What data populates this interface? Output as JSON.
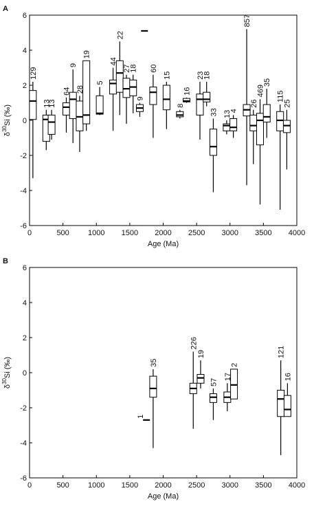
{
  "chart_data": [
    {
      "type": "box",
      "panel_label": "A",
      "xlabel": "Age (Ma)",
      "ylabel": {
        "prefix": "δ",
        "superscript": "30",
        "suffix": "Si (‰)"
      },
      "xlim": [
        0,
        4000
      ],
      "ylim": [
        -6,
        6
      ],
      "xticks": [
        0,
        500,
        1000,
        1500,
        2000,
        2500,
        3000,
        3500,
        4000
      ],
      "yticks": [
        -6,
        -4,
        -2,
        0,
        2,
        4,
        6
      ],
      "boxes": [
        {
          "x": 50,
          "n": "129",
          "min": -3.3,
          "q1": 0.05,
          "median": 1.1,
          "q3": 1.7,
          "max": 2.2
        },
        {
          "x": 250,
          "n": "13",
          "min": -1.7,
          "q1": -1.2,
          "median": 0.05,
          "q3": 0.3,
          "max": 0.6
        },
        {
          "x": 330,
          "n": "13",
          "min": -1.1,
          "q1": -0.8,
          "median": -0.1,
          "q3": 0.3,
          "max": 0.6
        },
        {
          "x": 550,
          "n": "64",
          "min": -0.7,
          "q1": 0.3,
          "median": 0.75,
          "q3": 1.0,
          "max": 1.3
        },
        {
          "x": 650,
          "n": "9",
          "min": -1.3,
          "q1": 0.1,
          "median": 1.2,
          "q3": 1.6,
          "max": 2.9
        },
        {
          "x": 750,
          "n": "28",
          "min": -1.8,
          "q1": -0.6,
          "median": 0.2,
          "q3": 1.1,
          "max": 1.4
        },
        {
          "x": 850,
          "n": "19",
          "min": -0.6,
          "q1": -0.2,
          "median": 0.3,
          "q3": 3.4,
          "max": 3.4
        },
        {
          "x": 1050,
          "n": "5",
          "min": 0.3,
          "q1": 0.35,
          "median": 0.4,
          "q3": 1.4,
          "max": 1.9
        },
        {
          "x": 1250,
          "n": "44",
          "min": -0.6,
          "q1": 1.5,
          "median": 2.1,
          "q3": 2.3,
          "max": 3.0
        },
        {
          "x": 1350,
          "n": "22",
          "min": 0.3,
          "q1": 1.6,
          "median": 2.7,
          "q3": 3.4,
          "max": 4.5
        },
        {
          "x": 1450,
          "n": "27",
          "min": -0.2,
          "q1": 1.3,
          "median": 1.8,
          "q3": 2.4,
          "max": 2.6
        },
        {
          "x": 1550,
          "n": "18",
          "min": 0.4,
          "q1": 1.4,
          "median": 1.9,
          "q3": 2.3,
          "max": 2.6
        },
        {
          "x": 1650,
          "n": "9",
          "min": 0.2,
          "q1": 0.5,
          "median": 0.7,
          "q3": 0.9,
          "max": 1.0
        },
        {
          "x": 1720,
          "min": 5.1,
          "q1": 5.1,
          "median": 5.1,
          "q3": 5.1,
          "max": 5.1
        },
        {
          "x": 1850,
          "n": "60",
          "min": -1.0,
          "q1": 0.9,
          "median": 1.6,
          "q3": 1.9,
          "max": 2.6
        },
        {
          "x": 2050,
          "n": "15",
          "min": -0.5,
          "q1": 0.6,
          "median": 1.2,
          "q3": 2.0,
          "max": 2.2
        },
        {
          "x": 2250,
          "n": "8",
          "min": 0.1,
          "q1": 0.2,
          "median": 0.3,
          "q3": 0.5,
          "max": 0.6
        },
        {
          "x": 2350,
          "n": "16",
          "min": 1.0,
          "q1": 1.05,
          "median": 1.1,
          "q3": 1.25,
          "max": 1.3
        },
        {
          "x": 2550,
          "n": "23",
          "min": -1.1,
          "q1": 0.3,
          "median": 1.2,
          "q3": 1.5,
          "max": 2.2
        },
        {
          "x": 2650,
          "n": "18",
          "min": 0.8,
          "q1": 1.05,
          "median": 1.2,
          "q3": 1.6,
          "max": 2.2
        },
        {
          "x": 2750,
          "n": "33",
          "min": -4.1,
          "q1": -2.0,
          "median": -1.5,
          "q3": -0.5,
          "max": 0.1
        },
        {
          "x": 2950,
          "n": "13",
          "min": -0.8,
          "q1": -0.6,
          "median": -0.3,
          "q3": -0.2,
          "max": 0.0
        },
        {
          "x": 3050,
          "n": "4",
          "min": -1.0,
          "q1": -0.6,
          "median": -0.4,
          "q3": 0.1,
          "max": 0.3
        },
        {
          "x": 3250,
          "n": "857",
          "min": -3.7,
          "q1": 0.25,
          "median": 0.6,
          "q3": 0.9,
          "max": 5.2
        },
        {
          "x": 3350,
          "n": "26",
          "min": -2.5,
          "q1": -0.6,
          "median": -0.3,
          "q3": 0.3,
          "max": 0.6
        },
        {
          "x": 3450,
          "n": "469",
          "min": -4.8,
          "q1": -1.4,
          "median": 0.0,
          "q3": 0.4,
          "max": 1.2
        },
        {
          "x": 3550,
          "n": "35",
          "min": -1.0,
          "q1": -0.1,
          "median": 0.2,
          "q3": 0.9,
          "max": 1.8
        },
        {
          "x": 3750,
          "n": "115",
          "min": -5.1,
          "q1": -0.6,
          "median": 0.0,
          "q3": 0.5,
          "max": 0.9
        },
        {
          "x": 3850,
          "n": "25",
          "min": -2.8,
          "q1": -0.7,
          "median": -0.3,
          "q3": 0.0,
          "max": 0.6
        }
      ]
    },
    {
      "type": "box",
      "panel_label": "B",
      "xlabel": "Age (Ma)",
      "ylabel": {
        "prefix": "δ",
        "superscript": "30",
        "suffix": "Si (‰)"
      },
      "xlim": [
        0,
        4000
      ],
      "ylim": [
        -6,
        6
      ],
      "xticks": [
        0,
        500,
        1000,
        1500,
        2000,
        2500,
        3000,
        3500,
        4000
      ],
      "yticks": [
        -6,
        -4,
        -2,
        0,
        2,
        4,
        6
      ],
      "boxes": [
        {
          "x": 1750,
          "n": "1",
          "min": -2.7,
          "q1": -2.7,
          "median": -2.7,
          "q3": -2.7,
          "max": -2.7
        },
        {
          "x": 1850,
          "n": "35",
          "min": -4.3,
          "q1": -1.4,
          "median": -0.9,
          "q3": -0.2,
          "max": 0.2
        },
        {
          "x": 2450,
          "n": "226",
          "min": -3.2,
          "q1": -1.2,
          "median": -0.9,
          "q3": -0.6,
          "max": 1.2
        },
        {
          "x": 2560,
          "n": "19",
          "min": -0.9,
          "q1": -0.6,
          "median": -0.3,
          "q3": -0.1,
          "max": 0.7
        },
        {
          "x": 2750,
          "n": "57",
          "min": -2.7,
          "q1": -1.7,
          "median": -1.4,
          "q3": -1.2,
          "max": -0.9
        },
        {
          "x": 2960,
          "n": "17",
          "min": -2.2,
          "q1": -1.7,
          "median": -1.4,
          "q3": -1.1,
          "max": -0.6
        },
        {
          "x": 3060,
          "n": "2",
          "min": -1.5,
          "q1": -1.5,
          "median": -0.7,
          "q3": 0.2,
          "max": 0.2
        },
        {
          "x": 3760,
          "n": "121",
          "min": -4.7,
          "q1": -2.5,
          "median": -1.5,
          "q3": -1.0,
          "max": 0.7
        },
        {
          "x": 3860,
          "n": "16",
          "min": -2.5,
          "q1": -2.5,
          "median": -2.1,
          "q3": -1.3,
          "max": -0.6
        }
      ]
    }
  ]
}
